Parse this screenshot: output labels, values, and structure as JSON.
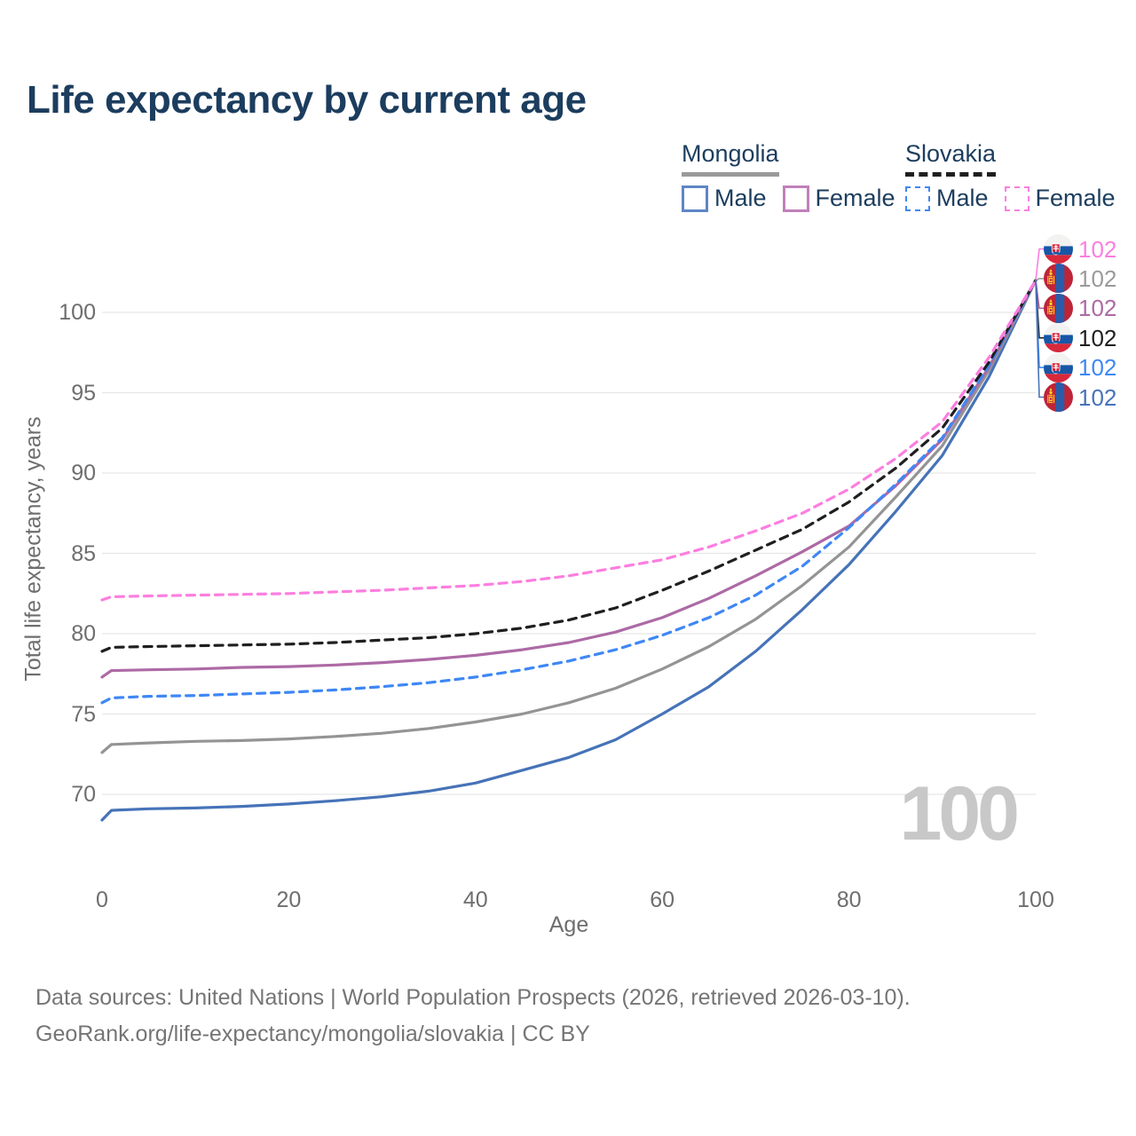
{
  "title": "Life expectancy by current age",
  "legend": {
    "groups": [
      {
        "name": "Mongolia",
        "style": "solid",
        "underline_color": "#9a9a9a",
        "items": [
          {
            "label": "Male",
            "color": "#5e86c6",
            "dashed": false
          },
          {
            "label": "Female",
            "color": "#c180ba",
            "dashed": false
          }
        ]
      },
      {
        "name": "Slovakia",
        "style": "dashed",
        "underline_color": "#1f1f1f",
        "items": [
          {
            "label": "Male",
            "color": "#3f87f5",
            "dashed": true
          },
          {
            "label": "Female",
            "color": "#fc7ee0",
            "dashed": true
          }
        ]
      }
    ]
  },
  "chart_data": {
    "type": "line",
    "title": "Life expectancy by current age",
    "xlabel": "Age",
    "ylabel": "Total life expectancy, years",
    "xlim": [
      0,
      100
    ],
    "ylim": [
      66.5,
      104.5
    ],
    "xticks": [
      0,
      20,
      40,
      60,
      80,
      100
    ],
    "yticks": [
      70,
      75,
      80,
      85,
      90,
      95,
      100
    ],
    "grid": "horizontal-only",
    "hovered_age": "100",
    "x": [
      0,
      1,
      5,
      10,
      15,
      20,
      25,
      30,
      35,
      40,
      45,
      50,
      55,
      60,
      65,
      70,
      75,
      80,
      85,
      90,
      95,
      100
    ],
    "series": [
      {
        "name": "Mongolia Male",
        "color": "#4673b8",
        "dashed": false,
        "values": [
          68.4,
          69.0,
          69.1,
          69.15,
          69.25,
          69.4,
          69.6,
          69.85,
          70.2,
          70.7,
          71.5,
          72.3,
          73.4,
          75.0,
          76.7,
          78.9,
          81.5,
          84.3,
          87.6,
          91.1,
          96.0,
          102
        ]
      },
      {
        "name": "Mongolia Both sexes",
        "color": "#949494",
        "dashed": false,
        "values": [
          72.6,
          73.1,
          73.2,
          73.3,
          73.35,
          73.45,
          73.6,
          73.8,
          74.1,
          74.5,
          75.0,
          75.7,
          76.6,
          77.8,
          79.2,
          80.9,
          83.0,
          85.4,
          88.5,
          91.7,
          96.4,
          102
        ]
      },
      {
        "name": "Mongolia Female",
        "color": "#ad6aa5",
        "dashed": false,
        "values": [
          77.3,
          77.7,
          77.75,
          77.8,
          77.9,
          77.95,
          78.05,
          78.2,
          78.4,
          78.65,
          79.0,
          79.45,
          80.1,
          81.0,
          82.2,
          83.6,
          85.1,
          86.7,
          89.2,
          92.1,
          96.6,
          102
        ]
      },
      {
        "name": "Slovakia Male",
        "color": "#3f87f5",
        "dashed": true,
        "values": [
          75.7,
          76.0,
          76.1,
          76.15,
          76.25,
          76.35,
          76.5,
          76.7,
          76.95,
          77.3,
          77.75,
          78.3,
          79.0,
          79.9,
          81.0,
          82.4,
          84.2,
          86.6,
          89.3,
          92.2,
          96.7,
          102
        ]
      },
      {
        "name": "Slovakia Both sexes",
        "color": "#1f1f1f",
        "dashed": true,
        "values": [
          78.9,
          79.15,
          79.2,
          79.25,
          79.3,
          79.35,
          79.45,
          79.6,
          79.75,
          80.0,
          80.35,
          80.85,
          81.6,
          82.7,
          83.9,
          85.2,
          86.5,
          88.2,
          90.3,
          92.8,
          96.9,
          102
        ]
      },
      {
        "name": "Slovakia Female",
        "color": "#fc7ee0",
        "dashed": true,
        "values": [
          82.1,
          82.3,
          82.35,
          82.4,
          82.45,
          82.5,
          82.6,
          82.7,
          82.85,
          83.0,
          83.25,
          83.6,
          84.1,
          84.6,
          85.4,
          86.4,
          87.5,
          89.0,
          90.9,
          93.2,
          97.2,
          102
        ]
      }
    ]
  },
  "end_labels": [
    {
      "flag": "slovakia",
      "value": "102",
      "color": "#fc7ee0"
    },
    {
      "flag": "mongolia",
      "value": "102",
      "color": "#9a9a9a"
    },
    {
      "flag": "mongolia",
      "value": "102",
      "color": "#ad6aa5"
    },
    {
      "flag": "slovakia",
      "value": "102",
      "color": "#1f1f1f"
    },
    {
      "flag": "slovakia",
      "value": "102",
      "color": "#3f87f5"
    },
    {
      "flag": "mongolia",
      "value": "102",
      "color": "#4673b8"
    }
  ],
  "watermark": "100",
  "footer": {
    "line1": "Data sources: United Nations | World Population Prospects (2026, retrieved 2026-03-10).",
    "line2": "GeoRank.org/life-expectancy/mongolia/slovakia | CC BY"
  }
}
